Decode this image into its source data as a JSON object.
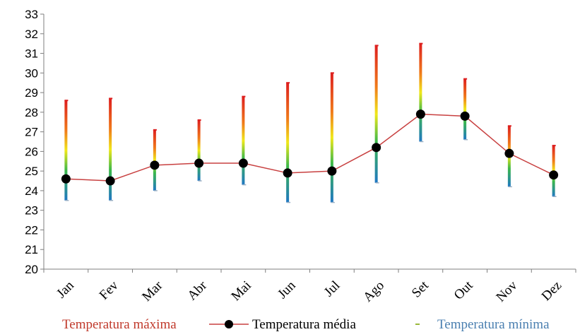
{
  "chart_data": {
    "type": "line",
    "categories": [
      "Jan",
      "Fev",
      "Mar",
      "Abr",
      "Mai",
      "Jun",
      "Jul",
      "Ago",
      "Set",
      "Out",
      "Nov",
      "Dez"
    ],
    "series": [
      {
        "name": "Temperatura máxima",
        "values": [
          28.6,
          28.7,
          27.1,
          27.6,
          28.8,
          29.5,
          30.0,
          31.4,
          31.5,
          29.7,
          27.3,
          26.3
        ]
      },
      {
        "name": "Temperatura média",
        "values": [
          24.6,
          24.5,
          25.3,
          25.4,
          25.4,
          24.9,
          25.0,
          26.2,
          27.9,
          27.8,
          25.9,
          24.8
        ]
      },
      {
        "name": "Temperatura mínima",
        "values": [
          23.5,
          23.5,
          24.0,
          24.5,
          24.3,
          23.4,
          23.4,
          24.4,
          26.5,
          26.6,
          24.2,
          23.7
        ]
      }
    ],
    "yticks": [
      20,
      21,
      22,
      23,
      24,
      25,
      26,
      27,
      28,
      29,
      30,
      31,
      32,
      33
    ],
    "ylim": [
      20,
      33
    ],
    "title": "",
    "xlabel": "",
    "ylabel": "",
    "grid": false,
    "legend_position": "bottom",
    "colors": {
      "max_top": "#dd1f1f",
      "mid": "#f0e81a",
      "green": "#3cb84a",
      "min_bottom": "#1f77c4",
      "mean_line": "#c84040",
      "mean_marker": "#000000",
      "legend_max_text": "#c0392b",
      "legend_min_text": "#4a7fb0",
      "legend_min_swatch": "#9bb93c"
    }
  }
}
